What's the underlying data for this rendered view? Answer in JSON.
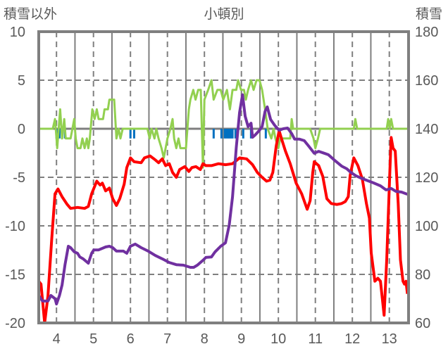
{
  "chart_data": {
    "type": "line",
    "title": "小頓別",
    "ylabel_left": "積雪以外",
    "ylabel_right": "積雪",
    "xlim": [
      3.52,
      13.52
    ],
    "ylim_left": [
      -20,
      10
    ],
    "ylim_right": [
      60,
      180
    ],
    "x_ticks": [
      4,
      5,
      6,
      7,
      8,
      9,
      10,
      11,
      12,
      13
    ],
    "y_ticks_left": [
      10,
      5,
      0,
      -5,
      -10,
      -15,
      -20
    ],
    "y_ticks_right": [
      180,
      160,
      140,
      120,
      100,
      80,
      60
    ],
    "grid": true,
    "colors": {
      "temperature": "#ff0000",
      "snow_depth": "#7030a0",
      "change": "#92d050",
      "precip": "#0070c0",
      "axis": "#7f7f7f"
    },
    "series": [
      {
        "name": "change",
        "axis": "left",
        "color": "#92d050",
        "points": [
          [
            3.52,
            0
          ],
          [
            3.9,
            0
          ],
          [
            3.96,
            1
          ],
          [
            4.0,
            -1
          ],
          [
            4.02,
            -2
          ],
          [
            4.1,
            2
          ],
          [
            4.15,
            -1
          ],
          [
            4.21,
            1
          ],
          [
            4.25,
            -1
          ],
          [
            4.38,
            -1
          ],
          [
            4.48,
            1
          ],
          [
            4.52,
            -1
          ],
          [
            4.57,
            -2
          ],
          [
            4.65,
            -2
          ],
          [
            4.7,
            -1
          ],
          [
            4.76,
            -2
          ],
          [
            4.82,
            -1
          ],
          [
            4.86,
            -2
          ],
          [
            4.9,
            -1
          ],
          [
            4.97,
            2
          ],
          [
            5.03,
            1
          ],
          [
            5.09,
            2
          ],
          [
            5.14,
            1
          ],
          [
            5.26,
            1
          ],
          [
            5.3,
            2
          ],
          [
            5.39,
            2
          ],
          [
            5.43,
            3
          ],
          [
            5.56,
            3
          ],
          [
            5.62,
            -1
          ],
          [
            5.68,
            0
          ],
          [
            5.73,
            -1
          ],
          [
            5.79,
            0
          ],
          [
            6.46,
            0
          ],
          [
            6.52,
            -1
          ],
          [
            6.57,
            0
          ],
          [
            6.65,
            -1
          ],
          [
            6.7,
            0
          ],
          [
            6.76,
            -1
          ],
          [
            6.84,
            -2
          ],
          [
            6.9,
            -3
          ],
          [
            7.0,
            -1
          ],
          [
            7.08,
            0
          ],
          [
            7.14,
            1
          ],
          [
            7.18,
            -1
          ],
          [
            7.24,
            -2
          ],
          [
            7.3,
            -1
          ],
          [
            7.35,
            -2
          ],
          [
            7.5,
            -2
          ],
          [
            7.58,
            2
          ],
          [
            7.62,
            3
          ],
          [
            7.7,
            4
          ],
          [
            7.76,
            3
          ],
          [
            7.83,
            4
          ],
          [
            7.9,
            4
          ],
          [
            7.96,
            -4
          ],
          [
            8.0,
            3
          ],
          [
            8.1,
            4
          ],
          [
            8.19,
            5
          ],
          [
            8.25,
            3
          ],
          [
            8.35,
            4
          ],
          [
            8.44,
            4
          ],
          [
            8.51,
            3
          ],
          [
            8.61,
            4
          ],
          [
            8.69,
            2
          ],
          [
            8.76,
            4
          ],
          [
            8.86,
            4
          ],
          [
            8.91,
            5
          ],
          [
            8.99,
            4
          ],
          [
            9.07,
            4
          ],
          [
            9.12,
            3
          ],
          [
            9.18,
            4
          ],
          [
            9.26,
            5
          ],
          [
            9.33,
            4
          ],
          [
            9.41,
            5
          ],
          [
            9.49,
            5
          ],
          [
            9.56,
            4
          ],
          [
            9.64,
            2
          ],
          [
            9.71,
            0
          ],
          [
            9.81,
            -1
          ],
          [
            9.87,
            0
          ],
          [
            9.92,
            -1
          ],
          [
            10.0,
            -2
          ],
          [
            10.05,
            -1
          ],
          [
            10.32,
            -1
          ],
          [
            10.36,
            1
          ],
          [
            10.4,
            0
          ],
          [
            10.86,
            0
          ],
          [
            10.95,
            -1
          ],
          [
            11.0,
            -2
          ],
          [
            11.07,
            -1
          ],
          [
            11.13,
            0
          ],
          [
            12.04,
            0
          ],
          [
            12.08,
            1
          ],
          [
            12.13,
            0
          ],
          [
            12.93,
            0
          ],
          [
            12.97,
            1
          ],
          [
            13.01,
            0
          ],
          [
            13.05,
            1
          ],
          [
            13.1,
            0
          ],
          [
            13.52,
            0
          ]
        ]
      },
      {
        "name": "temperature",
        "axis": "left",
        "color": "#ff0000",
        "points": [
          [
            3.52,
            -15.7
          ],
          [
            3.58,
            -16
          ],
          [
            3.68,
            -20
          ],
          [
            3.77,
            -17.2
          ],
          [
            3.87,
            -11.4
          ],
          [
            3.96,
            -6.7
          ],
          [
            4.04,
            -6.2
          ],
          [
            4.15,
            -7
          ],
          [
            4.29,
            -7.8
          ],
          [
            4.38,
            -8.2
          ],
          [
            4.57,
            -8.1
          ],
          [
            4.76,
            -8.2
          ],
          [
            4.86,
            -8
          ],
          [
            4.95,
            -6.7
          ],
          [
            5.09,
            -5.4
          ],
          [
            5.18,
            -5.8
          ],
          [
            5.24,
            -5.6
          ],
          [
            5.33,
            -6.4
          ],
          [
            5.43,
            -6.1
          ],
          [
            5.52,
            -7.2
          ],
          [
            5.62,
            -7.9
          ],
          [
            5.71,
            -7.2
          ],
          [
            5.83,
            -5.7
          ],
          [
            5.9,
            -4
          ],
          [
            6.0,
            -3
          ],
          [
            6.1,
            -3.4
          ],
          [
            6.29,
            -3.5
          ],
          [
            6.38,
            -3
          ],
          [
            6.53,
            -2.8
          ],
          [
            6.67,
            -3.2
          ],
          [
            6.76,
            -3.5
          ],
          [
            6.86,
            -3.1
          ],
          [
            6.95,
            -3.8
          ],
          [
            7.05,
            -3.6
          ],
          [
            7.14,
            -4.5
          ],
          [
            7.24,
            -5
          ],
          [
            7.33,
            -4.2
          ],
          [
            7.47,
            -3.9
          ],
          [
            7.58,
            -4.4
          ],
          [
            7.66,
            -4
          ],
          [
            7.77,
            -3.9
          ],
          [
            7.89,
            -4.2
          ],
          [
            7.96,
            -3.6
          ],
          [
            8.04,
            -3.8
          ],
          [
            8.19,
            -3.8
          ],
          [
            8.38,
            -3.6
          ],
          [
            8.57,
            -3.7
          ],
          [
            8.76,
            -3.6
          ],
          [
            8.95,
            -3
          ],
          [
            9.14,
            -3.1
          ],
          [
            9.3,
            -3.7
          ],
          [
            9.43,
            -4.5
          ],
          [
            9.56,
            -5
          ],
          [
            9.68,
            -5.4
          ],
          [
            9.77,
            -5.3
          ],
          [
            9.85,
            -4.5
          ],
          [
            9.94,
            -1.8
          ],
          [
            10.02,
            -0.2
          ],
          [
            10.1,
            -1.2
          ],
          [
            10.19,
            -2.3
          ],
          [
            10.32,
            -3.6
          ],
          [
            10.48,
            -5.6
          ],
          [
            10.63,
            -6.7
          ],
          [
            10.78,
            -8.3
          ],
          [
            10.86,
            -7.4
          ],
          [
            10.93,
            -4.5
          ],
          [
            10.97,
            -3.4
          ],
          [
            11.09,
            -3.8
          ],
          [
            11.2,
            -4.9
          ],
          [
            11.31,
            -7.2
          ],
          [
            11.43,
            -7.7
          ],
          [
            11.58,
            -7.8
          ],
          [
            11.71,
            -7.7
          ],
          [
            11.81,
            -7.5
          ],
          [
            11.89,
            -7
          ],
          [
            11.94,
            -4.8
          ],
          [
            12.04,
            -3
          ],
          [
            12.15,
            -3.8
          ],
          [
            12.27,
            -5.2
          ],
          [
            12.38,
            -7.7
          ],
          [
            12.46,
            -9.2
          ],
          [
            12.51,
            -12.8
          ],
          [
            12.61,
            -15.7
          ],
          [
            12.69,
            -15.4
          ],
          [
            12.76,
            -15.7
          ],
          [
            12.86,
            -19.2
          ],
          [
            12.93,
            -13.5
          ],
          [
            13.01,
            -4.9
          ],
          [
            13.05,
            -0.9
          ],
          [
            13.1,
            -2
          ],
          [
            13.16,
            -2.3
          ],
          [
            13.24,
            -7.7
          ],
          [
            13.3,
            -13.5
          ],
          [
            13.37,
            -15.7
          ],
          [
            13.41,
            -16
          ],
          [
            13.45,
            -15.7
          ],
          [
            13.49,
            -17
          ]
        ]
      },
      {
        "name": "snow_depth",
        "axis": "right",
        "color": "#7030a0",
        "points": [
          [
            3.52,
            71.3
          ],
          [
            3.62,
            69
          ],
          [
            3.77,
            69
          ],
          [
            3.85,
            71.3
          ],
          [
            3.96,
            70
          ],
          [
            4.0,
            67.8
          ],
          [
            4.08,
            71.3
          ],
          [
            4.15,
            75.6
          ],
          [
            4.23,
            84
          ],
          [
            4.32,
            91.6
          ],
          [
            4.38,
            91
          ],
          [
            4.48,
            89.3
          ],
          [
            4.57,
            88.7
          ],
          [
            4.63,
            87.2
          ],
          [
            4.72,
            86.4
          ],
          [
            4.86,
            84.6
          ],
          [
            4.95,
            88.7
          ],
          [
            5.01,
            90.1
          ],
          [
            5.14,
            90.1
          ],
          [
            5.33,
            91.3
          ],
          [
            5.43,
            91.6
          ],
          [
            5.52,
            91
          ],
          [
            5.62,
            89.6
          ],
          [
            5.81,
            89.6
          ],
          [
            5.9,
            88.7
          ],
          [
            6.0,
            91.6
          ],
          [
            6.13,
            92.5
          ],
          [
            6.29,
            91
          ],
          [
            6.48,
            89.6
          ],
          [
            6.67,
            87.8
          ],
          [
            6.86,
            86.4
          ],
          [
            7.05,
            84.9
          ],
          [
            7.24,
            84
          ],
          [
            7.43,
            83.8
          ],
          [
            7.62,
            82.9
          ],
          [
            7.71,
            82.9
          ],
          [
            7.81,
            83.8
          ],
          [
            7.96,
            85.8
          ],
          [
            8.04,
            87
          ],
          [
            8.19,
            87.2
          ],
          [
            8.29,
            89.3
          ],
          [
            8.44,
            91.6
          ],
          [
            8.57,
            93
          ],
          [
            8.67,
            100.3
          ],
          [
            8.76,
            111.9
          ],
          [
            8.86,
            132.2
          ],
          [
            8.95,
            146.7
          ],
          [
            9.03,
            154
          ],
          [
            9.1,
            145.2
          ],
          [
            9.18,
            140.9
          ],
          [
            9.26,
            142.3
          ],
          [
            9.3,
            136.5
          ],
          [
            9.37,
            137.4
          ],
          [
            9.49,
            139.4
          ],
          [
            9.56,
            140.9
          ],
          [
            9.64,
            147.2
          ],
          [
            9.7,
            149
          ],
          [
            9.79,
            143.8
          ],
          [
            9.9,
            141.4
          ],
          [
            10.02,
            139.4
          ],
          [
            10.13,
            140
          ],
          [
            10.25,
            140.3
          ],
          [
            10.36,
            138
          ],
          [
            10.44,
            135.7
          ],
          [
            10.57,
            135.7
          ],
          [
            10.7,
            135.1
          ],
          [
            10.82,
            132.8
          ],
          [
            10.97,
            129.9
          ],
          [
            11.09,
            130.7
          ],
          [
            11.24,
            129.9
          ],
          [
            11.35,
            129.3
          ],
          [
            11.52,
            127
          ],
          [
            11.71,
            124.6
          ],
          [
            11.85,
            123.5
          ],
          [
            11.96,
            122
          ],
          [
            12.1,
            120.6
          ],
          [
            12.23,
            119.7
          ],
          [
            12.38,
            118.8
          ],
          [
            12.57,
            117.7
          ],
          [
            12.76,
            116.5
          ],
          [
            12.91,
            114.8
          ],
          [
            13.05,
            115.4
          ],
          [
            13.18,
            114.2
          ],
          [
            13.33,
            113.9
          ],
          [
            13.49,
            113
          ]
        ]
      }
    ],
    "precip_bars": {
      "name": "precip",
      "axis": "left",
      "color": "#0070c0",
      "value": -1,
      "x": [
        4.0,
        4.08,
        4.15,
        4.23,
        6.0,
        6.1,
        8.25,
        8.46,
        8.55,
        8.59,
        8.63,
        8.67,
        8.71,
        8.76,
        8.84,
        9.05,
        9.26,
        9.66
      ]
    }
  }
}
